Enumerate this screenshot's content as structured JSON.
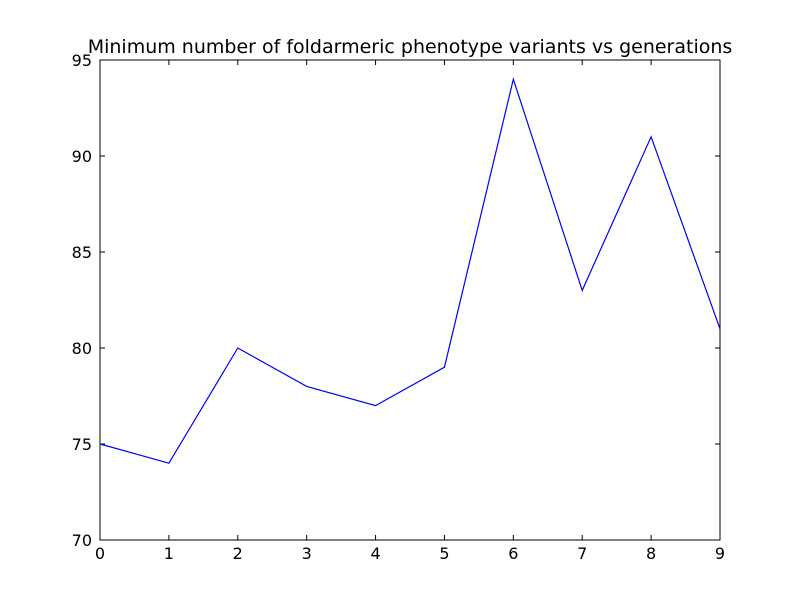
{
  "chart_data": {
    "type": "line",
    "title": "Minimum number of foldarmeric phenotype variants vs generations",
    "xlabel": "",
    "ylabel": "",
    "xlim": [
      0,
      9
    ],
    "ylim": [
      70,
      95
    ],
    "x_ticks": [
      "0",
      "1",
      "2",
      "3",
      "4",
      "5",
      "6",
      "7",
      "8",
      "9"
    ],
    "y_ticks": [
      "70",
      "75",
      "80",
      "85",
      "90",
      "95"
    ],
    "grid": false,
    "series": [
      {
        "color": "#0000ff",
        "x": [
          0,
          1,
          2,
          3,
          4,
          5,
          6,
          7,
          8,
          9
        ],
        "y": [
          75,
          74,
          80,
          78,
          77,
          79,
          94,
          83,
          91,
          81
        ]
      }
    ]
  }
}
